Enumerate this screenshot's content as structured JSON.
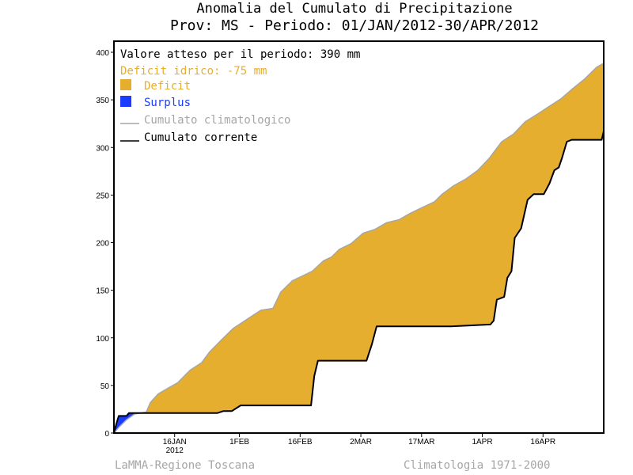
{
  "chart_data": {
    "type": "area",
    "title": "Anomalia del Cumulato di Precipitazione",
    "subtitle": "Prov: MS - Periodo: 01/JAN/2012-30/APR/2012",
    "xlabel": "",
    "ylabel": "",
    "ylim": [
      0,
      410
    ],
    "xlim_days": [
      0,
      121
    ],
    "y_ticks": [
      0,
      50,
      100,
      150,
      200,
      250,
      300,
      350,
      400
    ],
    "x_ticks": [
      {
        "day": 15,
        "label": "16JAN",
        "sublabel": "2012"
      },
      {
        "day": 31,
        "label": "1FEB",
        "sublabel": ""
      },
      {
        "day": 46,
        "label": "16FEB",
        "sublabel": ""
      },
      {
        "day": 61,
        "label": "2MAR",
        "sublabel": ""
      },
      {
        "day": 76,
        "label": "17MAR",
        "sublabel": ""
      },
      {
        "day": 91,
        "label": "1APR",
        "sublabel": ""
      },
      {
        "day": 106,
        "label": "16APR",
        "sublabel": ""
      }
    ],
    "annotations": {
      "expected": "Valore atteso per il periodo: 390 mm",
      "deficit": "Deficit idrico: -75 mm"
    },
    "legend": {
      "placement": "top-left",
      "entries": [
        {
          "label": "Deficit",
          "kind": "fill",
          "color": "#e6ae2e"
        },
        {
          "label": "Surplus",
          "kind": "fill",
          "color": "#1a3cff"
        },
        {
          "label": "Cumulato climatologico",
          "kind": "line",
          "color": "#a6a6a6"
        },
        {
          "label": "Cumulato corrente",
          "kind": "line",
          "color": "#000000"
        }
      ]
    },
    "series": [
      {
        "name": "Cumulato climatologico",
        "color": "#a6a6a6",
        "x": [
          0,
          1.2,
          3.1,
          5.1,
          8.0,
          9.0,
          10.9,
          13.3,
          15.8,
          18.8,
          21.7,
          23.6,
          26.6,
          29.5,
          33.4,
          36.3,
          39.3,
          41.2,
          44.1,
          49.0,
          51.8,
          53.8,
          55.7,
          58.6,
          61.6,
          64.5,
          67.4,
          70.4,
          73.3,
          76.2,
          79.2,
          81.1,
          84.0,
          87.0,
          89.9,
          92.8,
          95.8,
          98.7,
          101.6,
          104.6,
          107.5,
          110.4,
          113.4,
          116.3,
          119.2,
          120.8
        ],
        "values": [
          0,
          6,
          14,
          20,
          22,
          32,
          41,
          47,
          53,
          66,
          74,
          85,
          98,
          110,
          121,
          129,
          131,
          148,
          160,
          170,
          181,
          185,
          193,
          199,
          210,
          214,
          221,
          224,
          231,
          237,
          243,
          251,
          260,
          267,
          276,
          289,
          306,
          314,
          327,
          335,
          343,
          351,
          362,
          372,
          384,
          388
        ]
      },
      {
        "name": "Cumulato corrente",
        "color": "#000000",
        "x": [
          0,
          0.6,
          1.2,
          3.1,
          3.7,
          25.6,
          27.0,
          29.1,
          31.3,
          48.7,
          49.5,
          50.4,
          62.4,
          63.7,
          64.9,
          83.3,
          93.0,
          93.8,
          94.6,
          96.4,
          97.2,
          98.2,
          99.0,
          100.6,
          102.2,
          103.7,
          106.2,
          107.6,
          108.8,
          109.9,
          110.7,
          111.9,
          113.1,
          115.4,
          120.5,
          121.0
        ],
        "values": [
          0,
          10,
          18,
          18,
          21,
          21,
          23,
          23,
          29,
          29,
          60,
          76,
          76,
          93,
          112,
          112,
          114,
          118,
          140,
          143,
          163,
          170,
          205,
          215,
          245,
          251,
          251,
          262,
          276,
          279,
          289,
          306,
          308,
          308,
          308,
          317
        ]
      }
    ]
  },
  "footer": {
    "left": "LaMMA-Regione Toscana",
    "right": "Climatologia 1971-2000"
  }
}
